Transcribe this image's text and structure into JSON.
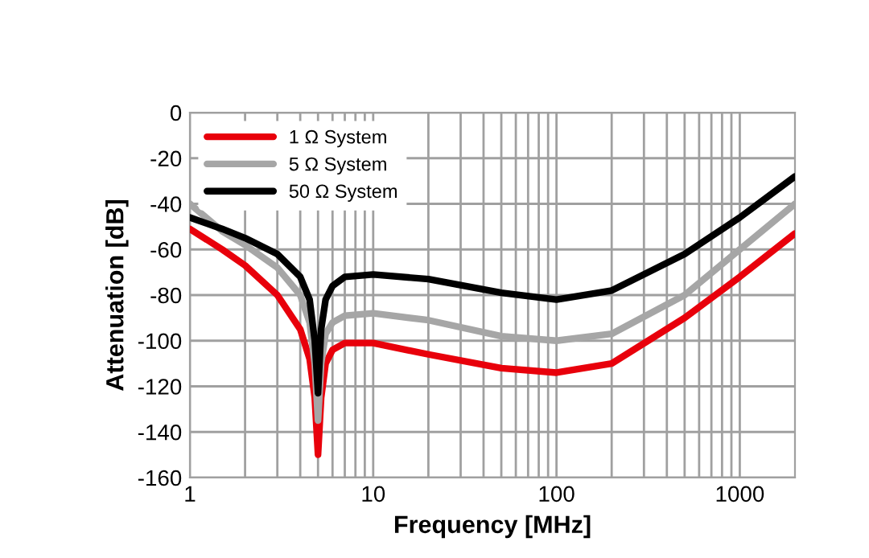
{
  "chart_data": {
    "type": "line",
    "xlabel": "Frequency [MHz]",
    "ylabel": "Attenuation [dB]",
    "log": "x",
    "xlim": [
      1,
      2000
    ],
    "ylim": [
      -160,
      0
    ],
    "xticks": [
      1,
      {
        "value": 2,
        "label": null
      },
      {
        "value": 3,
        "label": null
      },
      {
        "value": 4,
        "label": null
      },
      {
        "value": 5,
        "label": null
      },
      {
        "value": 6,
        "label": null
      },
      {
        "value": 7,
        "label": null
      },
      {
        "value": 8,
        "label": null
      },
      {
        "value": 9,
        "label": null
      },
      10,
      {
        "value": 20,
        "label": null
      },
      {
        "value": 30,
        "label": null
      },
      {
        "value": 40,
        "label": null
      },
      {
        "value": 50,
        "label": null
      },
      {
        "value": 60,
        "label": null
      },
      {
        "value": 70,
        "label": null
      },
      {
        "value": 80,
        "label": null
      },
      {
        "value": 90,
        "label": null
      },
      100,
      {
        "value": 200,
        "label": null
      },
      {
        "value": 300,
        "label": null
      },
      {
        "value": 400,
        "label": null
      },
      {
        "value": 500,
        "label": null
      },
      {
        "value": 600,
        "label": null
      },
      {
        "value": 700,
        "label": null
      },
      {
        "value": 800,
        "label": null
      },
      {
        "value": 900,
        "label": null
      },
      1000
    ],
    "yticks": [
      -160,
      -140,
      -120,
      -100,
      -80,
      -60,
      -40,
      -20,
      0
    ],
    "grid": true,
    "legend": "top left",
    "marker": "none",
    "line_style": "solid",
    "x": [
      1,
      1.5,
      2,
      3,
      4,
      4.5,
      4.8,
      5,
      5.2,
      5.5,
      6,
      7,
      10,
      20,
      50,
      100,
      200,
      500,
      1000,
      2000
    ],
    "series": [
      {
        "name": "1 Ω System",
        "color": "#e8000b",
        "values": [
          -51,
          -60,
          -67,
          -80,
          -95,
          -108,
          -125,
          -150,
          -125,
          -110,
          -104,
          -101,
          -101,
          -106,
          -112,
          -114,
          -110,
          -90,
          -72,
          -53
        ]
      },
      {
        "name": "5 Ω System",
        "color": "#a6a6a6",
        "values": [
          -40,
          -52,
          -58,
          -68,
          -80,
          -92,
          -110,
          -135,
          -110,
          -97,
          -92,
          -89,
          -88,
          -91,
          -98,
          -100,
          -97,
          -80,
          -60,
          -40
        ]
      },
      {
        "name": "50 Ω System",
        "color": "#000000",
        "values": [
          -46,
          -51,
          -55,
          -62,
          -72,
          -82,
          -100,
          -123,
          -95,
          -82,
          -76,
          -72,
          -71,
          -73,
          -79,
          -82,
          -78,
          -62,
          -46,
          -28
        ]
      }
    ]
  }
}
